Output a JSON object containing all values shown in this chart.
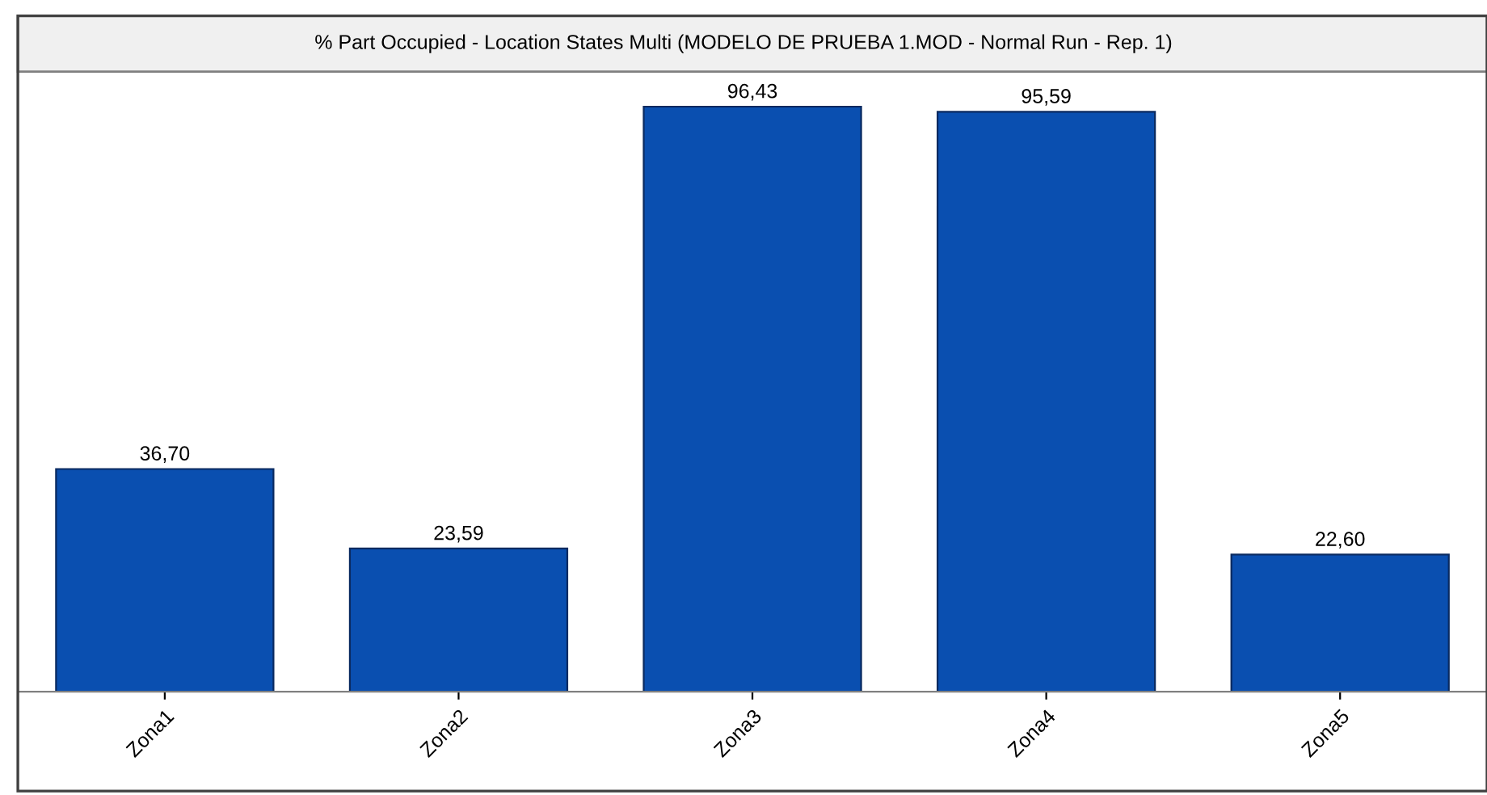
{
  "chart_data": {
    "type": "bar",
    "title": "% Part Occupied - Location States Multi (MODELO DE PRUEBA 1.MOD - Normal Run - Rep. 1)",
    "categories": [
      "Zona1",
      "Zona2",
      "Zona3",
      "Zona4",
      "Zona5"
    ],
    "values": [
      36.7,
      23.59,
      96.43,
      95.59,
      22.6
    ],
    "value_labels": [
      "36,70",
      "23,59",
      "96,43",
      "95,59",
      "22,60"
    ],
    "color": "#0a4fb0",
    "grid": false,
    "legend": false
  }
}
